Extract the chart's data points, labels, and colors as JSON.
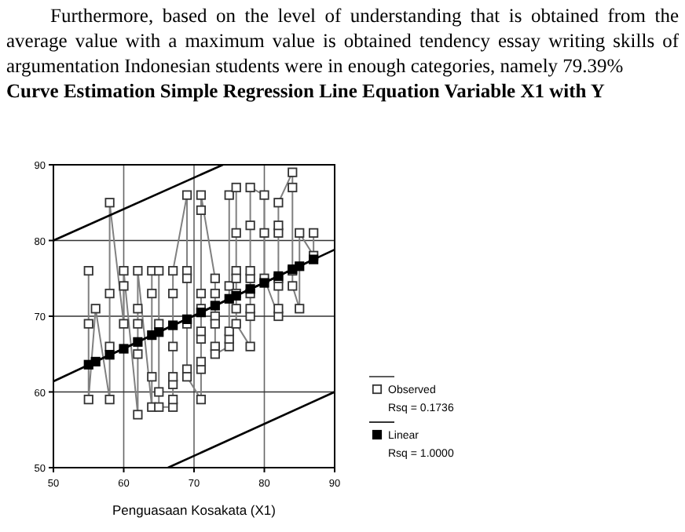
{
  "chart_data": {
    "type": "line",
    "subtitle": "Furthermore, based on the level of understanding that is obtained from the average value with a maximum value is obtained tendency essay writing skills of argumentation Indonesian students were in enough categories, namely 79.39%",
    "title": "Curve Estimation Simple Regression Line Equation Variable X1 with Y",
    "xlabel": "Penguasaan Kosakata (X1)",
    "xlim": [
      50,
      90
    ],
    "ylim": [
      50,
      90
    ],
    "xticks": [
      50,
      60,
      70,
      80,
      90
    ],
    "yticks": [
      50,
      60,
      70,
      80,
      90
    ],
    "grid": true,
    "legend": "right",
    "marker": "square",
    "annotations": [
      "Rsq = 0.1736",
      "Rsq = 1.0000"
    ],
    "series": [
      {
        "name": "Observed",
        "color": "#808080",
        "x": [
          55,
          55,
          55,
          56,
          58,
          58,
          58,
          58,
          60,
          60,
          60,
          62,
          62,
          62,
          62,
          62,
          64,
          64,
          64,
          64,
          65,
          65,
          65,
          65,
          67,
          67,
          67,
          67,
          67,
          67,
          67,
          69,
          69,
          69,
          69,
          69,
          69,
          71,
          71,
          71,
          71,
          71,
          71,
          71,
          71,
          71,
          73,
          73,
          73,
          73,
          73,
          73,
          75,
          75,
          75,
          75,
          75,
          76,
          76,
          76,
          76,
          76,
          76,
          76,
          78,
          78,
          78,
          78,
          78,
          78,
          78,
          78,
          80,
          80,
          80,
          82,
          82,
          82,
          82,
          82,
          82,
          82,
          84,
          84,
          84,
          84,
          85,
          85,
          87,
          87
        ],
        "values": [
          76,
          69,
          59,
          71,
          59,
          66,
          73,
          85,
          69,
          74,
          76,
          57,
          65,
          69,
          71,
          76,
          58,
          62,
          73,
          76,
          76,
          69,
          60,
          58,
          58,
          59,
          61,
          62,
          66,
          73,
          76,
          86,
          76,
          75,
          69,
          63,
          62,
          59,
          63,
          64,
          67,
          68,
          71,
          73,
          84,
          86,
          75,
          73,
          70,
          69,
          66,
          65,
          66,
          67,
          68,
          74,
          86,
          87,
          81,
          76,
          75,
          73,
          71,
          69,
          66,
          70,
          71,
          73,
          75,
          76,
          82,
          87,
          86,
          81,
          75,
          70,
          71,
          74,
          75,
          81,
          82,
          85,
          89,
          87,
          76,
          74,
          71,
          81,
          78,
          81
        ]
      },
      {
        "name": "Linear",
        "color": "#000000",
        "x": [
          55,
          56,
          58,
          60,
          62,
          64,
          65,
          67,
          69,
          71,
          73,
          75,
          76,
          78,
          80,
          82,
          84,
          85,
          87
        ],
        "values": [
          63.6,
          64.0,
          64.9,
          65.7,
          66.6,
          67.5,
          67.9,
          68.8,
          69.6,
          70.5,
          71.4,
          72.3,
          72.7,
          73.6,
          74.4,
          75.3,
          76.2,
          76.6,
          77.5
        ]
      },
      {
        "color": "#000000",
        "marker": "none",
        "x": [
          50,
          90
        ],
        "values": [
          61.4,
          78.8
        ]
      },
      {
        "color": "#000000",
        "marker": "none",
        "x": [
          50,
          74.1
        ],
        "values": [
          80,
          90
        ]
      },
      {
        "color": "#000000",
        "marker": "none",
        "x": [
          66.3,
          90
        ],
        "values": [
          50,
          60
        ]
      }
    ]
  }
}
